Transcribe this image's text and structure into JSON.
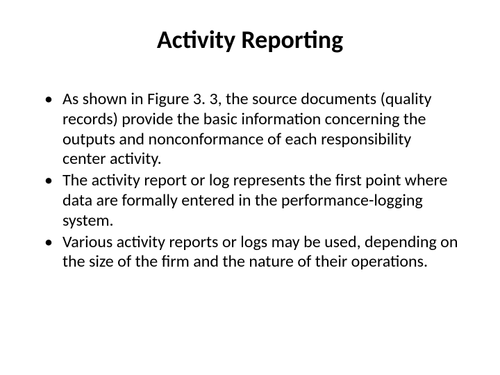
{
  "slide": {
    "title": "Activity Reporting",
    "bullets": [
      "As shown in Figure 3. 3, the source documents (quality records) provide the basic information concerning the outputs and nonconformance of each responsibility center activity.",
      "The activity report or log represents the first point where data are formally entered in the performance-logging system.",
      "Various activity reports or logs may be used, depending on the size of the firm and the nature of their operations."
    ],
    "colors": {
      "background": "#ffffff",
      "text": "#000000"
    },
    "typography": {
      "title_fontsize": 36,
      "title_weight": "bold",
      "body_fontsize": 24,
      "font_family": "Calibri"
    }
  }
}
